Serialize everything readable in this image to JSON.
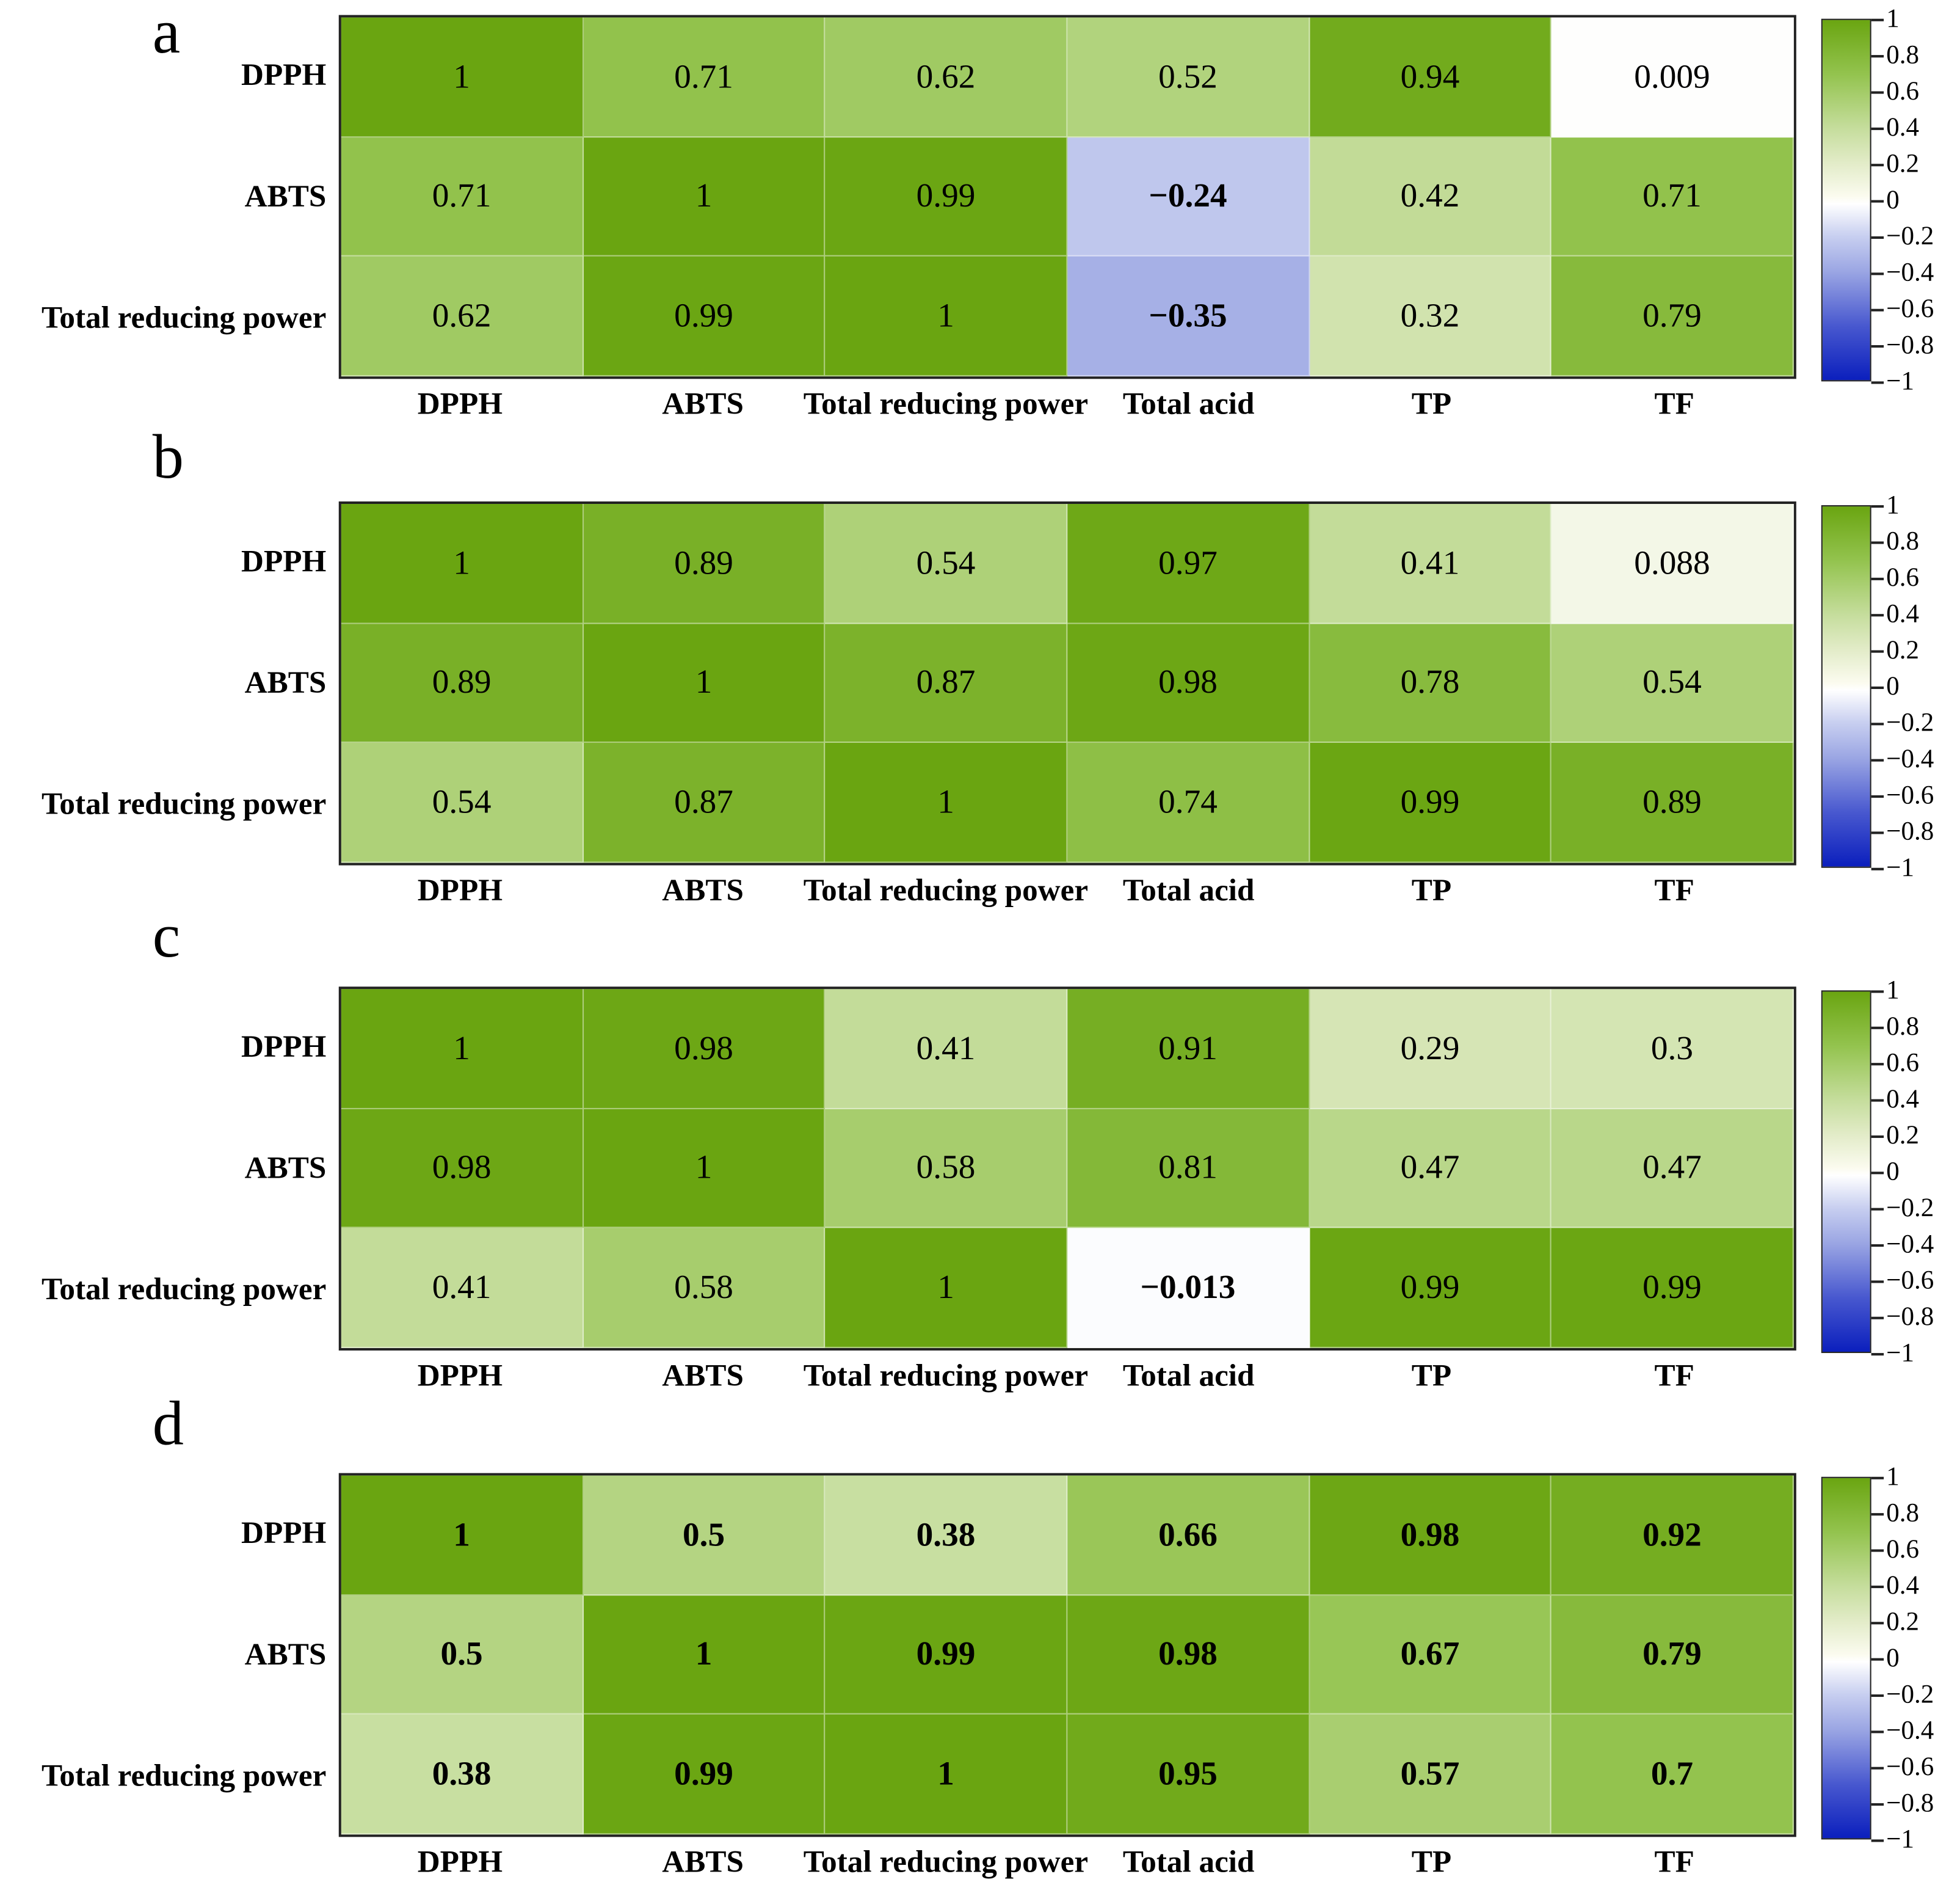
{
  "chart_data": [
    {
      "type": "heatmap",
      "panel": "a",
      "rows": [
        "DPPH",
        "ABTS",
        "Total reducing power"
      ],
      "columns": [
        "DPPH",
        "ABTS",
        "Total reducing power",
        "Total acid",
        "TP",
        "TF"
      ],
      "values": [
        [
          "1",
          "0.71",
          "0.62",
          "0.52",
          "0.94",
          "0.009"
        ],
        [
          "0.71",
          "1",
          "0.99",
          "−0.24",
          "0.42",
          "0.71"
        ],
        [
          "0.62",
          "0.99",
          "1",
          "−0.35",
          "0.32",
          "0.79"
        ]
      ],
      "bold_values": false,
      "colorbar": {
        "range": [
          -1,
          1
        ],
        "ticks": [
          "1",
          "0.8",
          "0.6",
          "0.4",
          "0.2",
          "0",
          "−0.2",
          "−0.4",
          "−0.6",
          "−0.8",
          "−1"
        ]
      }
    },
    {
      "type": "heatmap",
      "panel": "b",
      "rows": [
        "DPPH",
        "ABTS",
        "Total reducing power"
      ],
      "columns": [
        "DPPH",
        "ABTS",
        "Total reducing power",
        "Total acid",
        "TP",
        "TF"
      ],
      "values": [
        [
          "1",
          "0.89",
          "0.54",
          "0.97",
          "0.41",
          "0.088"
        ],
        [
          "0.89",
          "1",
          "0.87",
          "0.98",
          "0.78",
          "0.54"
        ],
        [
          "0.54",
          "0.87",
          "1",
          "0.74",
          "0.99",
          "0.89"
        ]
      ],
      "bold_values": false,
      "colorbar": {
        "range": [
          -1,
          1
        ],
        "ticks": [
          "1",
          "0.8",
          "0.6",
          "0.4",
          "0.2",
          "0",
          "−0.2",
          "−0.4",
          "−0.6",
          "−0.8",
          "−1"
        ]
      }
    },
    {
      "type": "heatmap",
      "panel": "c",
      "rows": [
        "DPPH",
        "ABTS",
        "Total reducing power"
      ],
      "columns": [
        "DPPH",
        "ABTS",
        "Total reducing power",
        "Total acid",
        "TP",
        "TF"
      ],
      "values": [
        [
          "1",
          "0.98",
          "0.41",
          "0.91",
          "0.29",
          "0.3"
        ],
        [
          "0.98",
          "1",
          "0.58",
          "0.81",
          "0.47",
          "0.47"
        ],
        [
          "0.41",
          "0.58",
          "1",
          "−0.013",
          "0.99",
          "0.99"
        ]
      ],
      "bold_values": false,
      "colorbar": {
        "range": [
          -1,
          1
        ],
        "ticks": [
          "1",
          "0.8",
          "0.6",
          "0.4",
          "0.2",
          "0",
          "−0.2",
          "−0.4",
          "−0.6",
          "−0.8",
          "−1"
        ]
      }
    },
    {
      "type": "heatmap",
      "panel": "d",
      "rows": [
        "DPPH",
        "ABTS",
        "Total reducing power"
      ],
      "columns": [
        "DPPH",
        "ABTS",
        "Total reducing power",
        "Total acid",
        "TP",
        "TF"
      ],
      "values": [
        [
          "1",
          "0.5",
          "0.38",
          "0.66",
          "0.98",
          "0.92"
        ],
        [
          "0.5",
          "1",
          "0.99",
          "0.98",
          "0.67",
          "0.79"
        ],
        [
          "0.38",
          "0.99",
          "1",
          "0.95",
          "0.57",
          "0.7"
        ]
      ],
      "bold_values": true,
      "colorbar": {
        "range": [
          -1,
          1
        ],
        "ticks": [
          "1",
          "0.8",
          "0.6",
          "0.4",
          "0.2",
          "0",
          "−0.2",
          "−0.4",
          "−0.6",
          "−0.8",
          "−1"
        ]
      }
    }
  ],
  "colors": {
    "max": "#6aa511",
    "mid": "#ffffff",
    "min": "#0b1fbd"
  }
}
